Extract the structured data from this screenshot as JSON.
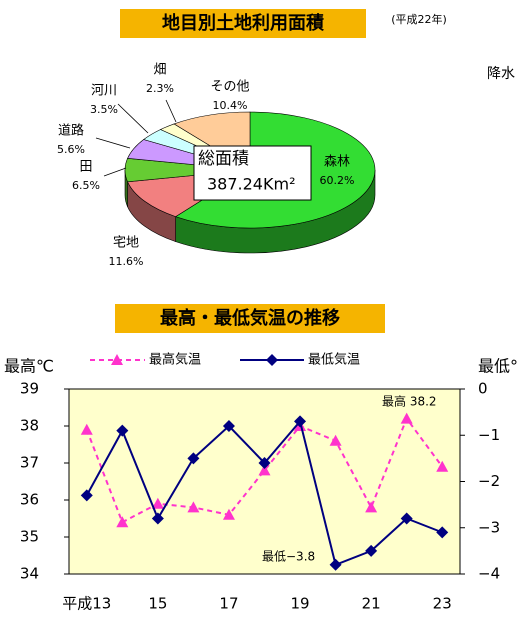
{
  "clipped_text": "降水",
  "chart_data": [
    {
      "type": "pie3d",
      "title": "地目別土地利用面積",
      "subtitle": "(平成22年)",
      "center_label": [
        "総面積",
        "387.24Km²"
      ],
      "categories": [
        "森林",
        "宅地",
        "田",
        "道路",
        "河川",
        "畑",
        "その他"
      ],
      "values": [
        60.2,
        11.6,
        6.5,
        5.6,
        3.5,
        2.3,
        10.4
      ],
      "value_labels": [
        "60.2%",
        "11.6%",
        "6.5%",
        "5.6%",
        "3.5%",
        "2.3%",
        "10.4%"
      ],
      "colors": [
        "#33dd33",
        "#f28080",
        "#66cc33",
        "#cc99ff",
        "#ccffff",
        "#ffffcc",
        "#ffcc99"
      ]
    },
    {
      "type": "line",
      "title": "最高・最低気温の推移",
      "ylabel": "最高℃",
      "y2label": "最低℃",
      "categories": [
        "平成13",
        null,
        "15",
        null,
        "17",
        null,
        "19",
        null,
        "21",
        null,
        "23"
      ],
      "series": [
        {
          "name": "最高気温",
          "color": "#ff33cc",
          "dashed": true,
          "marker": "triangle",
          "values": [
            37.9,
            35.4,
            35.9,
            35.8,
            35.6,
            36.8,
            38.0,
            37.6,
            35.8,
            38.2,
            36.9
          ]
        },
        {
          "name": "最低気温",
          "color": "#000080",
          "axis": "y2",
          "marker": "diamond",
          "values": [
            -2.3,
            -0.9,
            -2.8,
            -1.5,
            -0.8,
            -1.6,
            -0.7,
            -3.8,
            -3.5,
            -2.8,
            -3.1
          ]
        }
      ],
      "ylim": [
        34,
        39
      ],
      "yticks": [
        34,
        35,
        36,
        37,
        38,
        39
      ],
      "y2lim": [
        -4,
        0
      ],
      "y2ticks": [
        {
          "value": -4,
          "label": "−4"
        },
        {
          "value": -3,
          "label": "−3"
        },
        {
          "value": -2,
          "label": "−2"
        },
        {
          "value": -1,
          "label": "−1"
        },
        0
      ],
      "annotations": [
        "最高 38.2",
        "最低−3.8"
      ]
    }
  ]
}
